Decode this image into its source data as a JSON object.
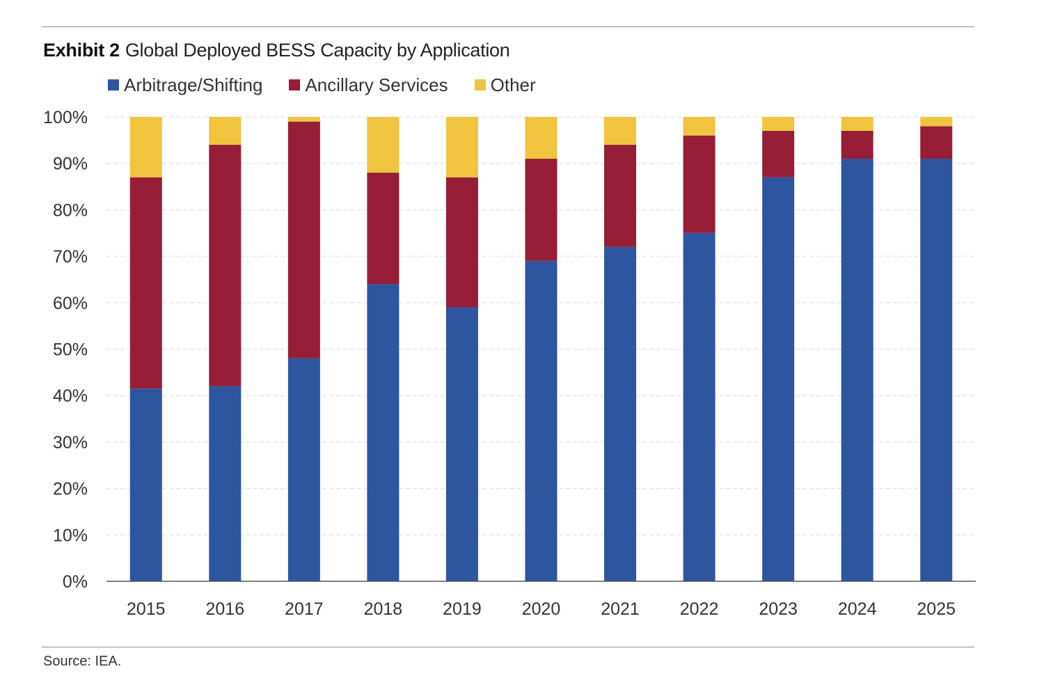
{
  "header": {
    "exhibit": "Exhibit 2",
    "title": "Global Deployed BESS Capacity by Application"
  },
  "footer": {
    "source": "Source: IEA."
  },
  "colors": {
    "arbitrage": "#2d55a0",
    "ancillary": "#961e36",
    "other": "#f0c43e",
    "grid": "#d9d9d9",
    "axis": "#555555"
  },
  "chart_data": {
    "type": "bar",
    "stacked": true,
    "categories": [
      "2015",
      "2016",
      "2017",
      "2018",
      "2019",
      "2020",
      "2021",
      "2022",
      "2023",
      "2024",
      "2025"
    ],
    "series": [
      {
        "name": "Arbitrage/Shifting",
        "color": "#2d55a0",
        "values": [
          41.5,
          42,
          48,
          64,
          59,
          69,
          72,
          75,
          87,
          91,
          91
        ]
      },
      {
        "name": "Ancillary Services",
        "color": "#961e36",
        "values": [
          45.5,
          52,
          51,
          24,
          28,
          22,
          22,
          21,
          10,
          6,
          7
        ]
      },
      {
        "name": "Other",
        "color": "#f0c43e",
        "values": [
          13,
          6,
          1,
          12,
          13,
          9,
          6,
          4,
          3,
          3,
          2
        ]
      }
    ],
    "yticks": [
      "0%",
      "10%",
      "20%",
      "30%",
      "40%",
      "50%",
      "60%",
      "70%",
      "80%",
      "90%",
      "100%"
    ],
    "ylim": [
      0,
      100
    ],
    "title": "Global Deployed BESS Capacity by Application",
    "xlabel": "",
    "ylabel": "",
    "grid": true,
    "legend_position": "top-left"
  }
}
